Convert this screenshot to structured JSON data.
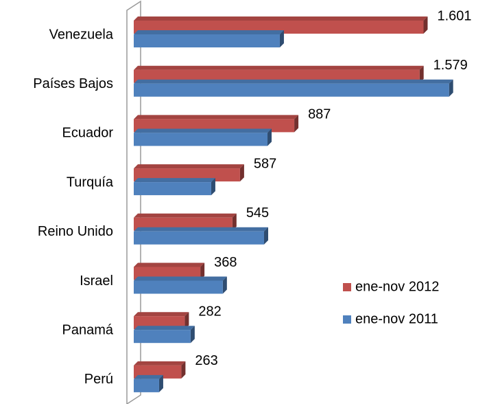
{
  "chart_data": {
    "type": "bar3d-horizontal",
    "categories": [
      "Venezuela",
      "Países Bajos",
      "Ecuador",
      "Turquía",
      "Reino Unido",
      "Israel",
      "Panamá",
      "Perú"
    ],
    "series": [
      {
        "name": "ene-nov 2012",
        "color": "#c0504d",
        "values": [
          1601,
          1579,
          887,
          587,
          545,
          368,
          282,
          263
        ],
        "value_labels": [
          "1.601",
          "1.579",
          "887",
          "587",
          "545",
          "368",
          "282",
          "263"
        ]
      },
      {
        "name": "ene-nov 2011",
        "color": "#4f81bd",
        "values": [
          807,
          1742,
          739,
          428,
          720,
          492,
          314,
          140
        ]
      }
    ],
    "xlim": [
      0,
      1800
    ],
    "legend": "right"
  }
}
